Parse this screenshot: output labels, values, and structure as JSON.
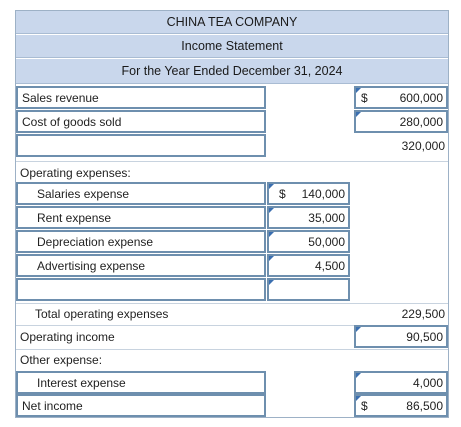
{
  "header": {
    "company": "CHINA TEA COMPANY",
    "statement": "Income Statement",
    "period": "For the Year Ended December 31, 2024"
  },
  "rows": {
    "sales_revenue": {
      "label": "Sales revenue",
      "dollar": "$",
      "value": "600,000"
    },
    "cost_of_goods_sold": {
      "label": "Cost of goods sold",
      "value": "280,000"
    },
    "gross_profit": {
      "label": "",
      "value": "320,000"
    },
    "operating_expenses": {
      "label": "Operating expenses:"
    },
    "salaries_expense": {
      "label": "Salaries expense",
      "dollar": "$",
      "value": "140,000"
    },
    "rent_expense": {
      "label": "Rent expense",
      "value": "35,000"
    },
    "depreciation_expense": {
      "label": "Depreciation expense",
      "value": "50,000"
    },
    "advertising_expense": {
      "label": "Advertising expense",
      "value": "4,500"
    },
    "total_operating_expenses": {
      "label": "Total operating expenses",
      "value": "229,500"
    },
    "operating_income": {
      "label": "Operating income",
      "value": "90,500"
    },
    "other_expense": {
      "label": "Other expense:"
    },
    "interest_expense": {
      "label": "Interest expense",
      "value": "4,000"
    },
    "net_income": {
      "label": "Net income",
      "dollar": "$",
      "value": "86,500"
    }
  }
}
